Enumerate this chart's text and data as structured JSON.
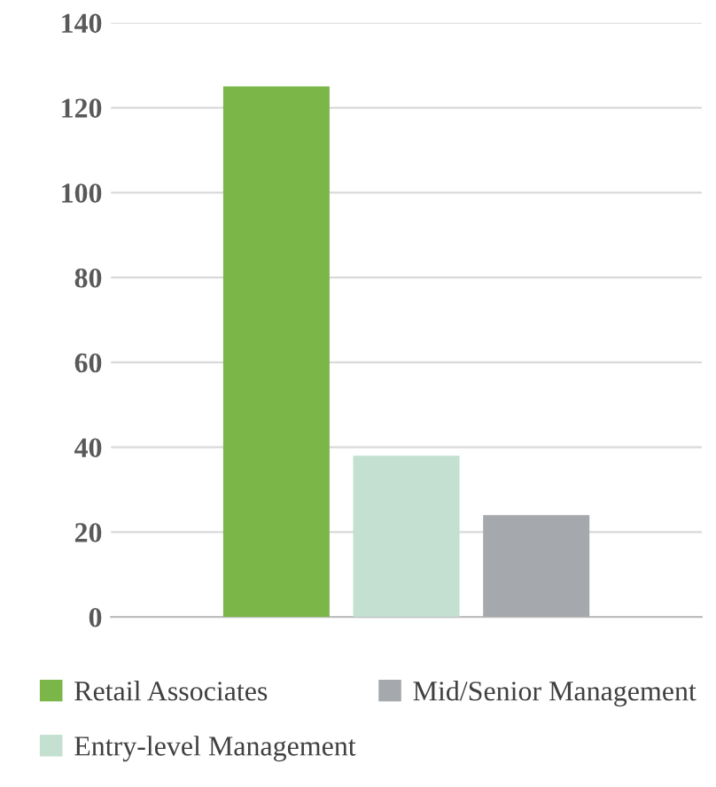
{
  "chart_data": {
    "type": "bar",
    "categories": [
      null
    ],
    "series": [
      {
        "name": "Retail Associates",
        "color": "#7ab648",
        "values": [
          125
        ]
      },
      {
        "name": "Entry-level Management",
        "color": "#c3e0d0",
        "values": [
          38
        ]
      },
      {
        "name": "Mid/Senior Management",
        "color": "#a5a8ad",
        "values": [
          24
        ]
      }
    ],
    "ylim": [
      0,
      140
    ],
    "yticks": [
      0,
      20,
      40,
      60,
      80,
      100,
      120,
      140
    ],
    "grid": "y",
    "legend": "bottom",
    "tick_labels": "y"
  }
}
